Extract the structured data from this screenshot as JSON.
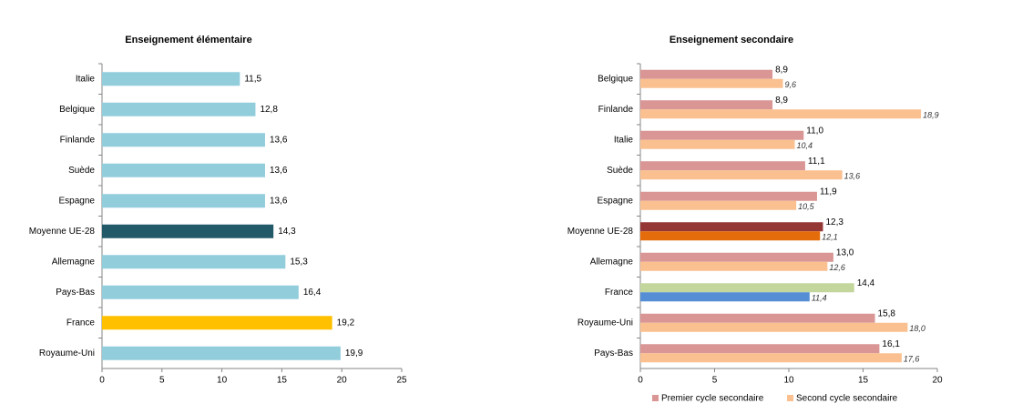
{
  "chart_data": [
    {
      "type": "hbar",
      "title": "Enseignement élémentaire",
      "categories": [
        "Italie",
        "Belgique",
        "Finlande",
        "Suède",
        "Espagne",
        "Moyenne UE-28",
        "Allemagne",
        "Pays-Bas",
        "France",
        "Royaume-Uni"
      ],
      "values": [
        11.5,
        12.8,
        13.6,
        13.6,
        13.6,
        14.3,
        15.3,
        16.4,
        19.2,
        19.9
      ],
      "value_labels": [
        "11,5",
        "12,8",
        "13,6",
        "13,6",
        "13,6",
        "14,3",
        "15,3",
        "16,4",
        "19,2",
        "19,9"
      ],
      "colors": [
        "#92cddc",
        "#92cddc",
        "#92cddc",
        "#92cddc",
        "#92cddc",
        "#215968",
        "#92cddc",
        "#92cddc",
        "#ffc000",
        "#92cddc"
      ],
      "xlim": [
        0,
        25
      ],
      "xticks": [
        0,
        5,
        10,
        15,
        20,
        25
      ]
    },
    {
      "type": "hbar-grouped",
      "title": "Enseignement secondaire",
      "categories": [
        "Belgique",
        "Finlande",
        "Italie",
        "Suède",
        "Espagne",
        "Moyenne UE-28",
        "Allemagne",
        "France",
        "Royaume-Uni",
        "Pays-Bas"
      ],
      "series": [
        {
          "name": "Premier cycle secondaire",
          "color": "#d99694",
          "colors": [
            "#d99694",
            "#d99694",
            "#d99694",
            "#d99694",
            "#d99694",
            "#953735",
            "#d99694",
            "#c3d69b",
            "#d99694",
            "#d99694"
          ],
          "values": [
            8.9,
            8.9,
            11.0,
            11.1,
            11.9,
            12.3,
            13.0,
            14.4,
            15.8,
            16.1
          ],
          "value_labels": [
            "8,9",
            "8,9",
            "11,0",
            "11,1",
            "11,9",
            "12,3",
            "13,0",
            "14,4",
            "15,8",
            "16,1"
          ]
        },
        {
          "name": "Second cycle secondaire",
          "color": "#fac090",
          "colors": [
            "#fac090",
            "#fac090",
            "#fac090",
            "#fac090",
            "#fac090",
            "#e46c0a",
            "#fac090",
            "#558ed5",
            "#fac090",
            "#fac090"
          ],
          "values": [
            9.6,
            18.9,
            10.4,
            13.6,
            10.5,
            12.1,
            12.6,
            11.4,
            18.0,
            17.6
          ],
          "value_labels": [
            "9,6",
            "18,9",
            "10,4",
            "13,6",
            "10,5",
            "12,1",
            "12,6",
            "11,4",
            "18,0",
            "17,6"
          ]
        }
      ],
      "xlim": [
        0,
        20
      ],
      "xticks": [
        0,
        5,
        10,
        15,
        20
      ]
    }
  ]
}
